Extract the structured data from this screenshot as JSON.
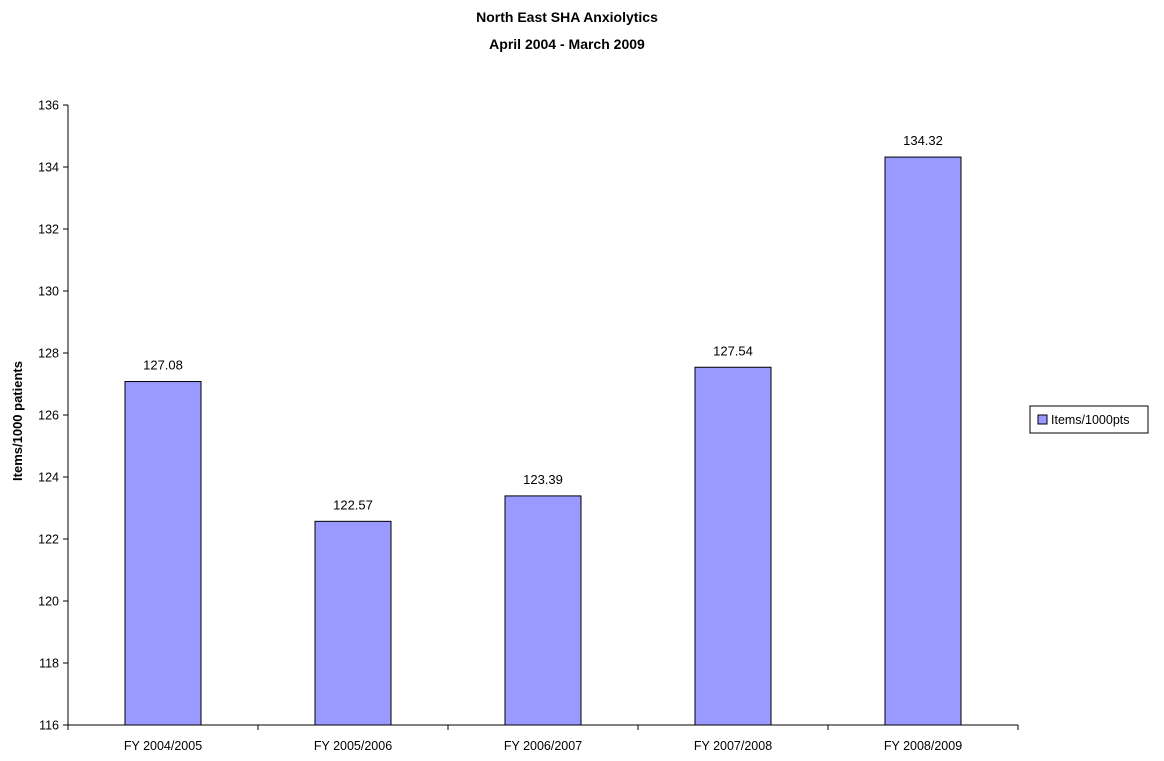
{
  "chart_data": {
    "type": "bar",
    "title": "North East SHA Anxiolytics",
    "subtitle": "April 2004 - March 2009",
    "xlabel": "",
    "ylabel": "Items/1000 patients",
    "ylim": [
      116,
      136
    ],
    "yticks": [
      116,
      118,
      120,
      122,
      124,
      126,
      128,
      130,
      132,
      134,
      136
    ],
    "categories": [
      "FY 2004/2005",
      "FY 2005/2006",
      "FY 2006/2007",
      "FY 2007/2008",
      "FY 2008/2009"
    ],
    "series": [
      {
        "name": "Items/1000pts",
        "values": [
          127.08,
          122.57,
          123.39,
          127.54,
          134.32
        ],
        "color": "#9999FF"
      }
    ],
    "data_labels": [
      "127.08",
      "122.57",
      "123.39",
      "127.54",
      "134.32"
    ],
    "grid": false,
    "legend": "right"
  }
}
